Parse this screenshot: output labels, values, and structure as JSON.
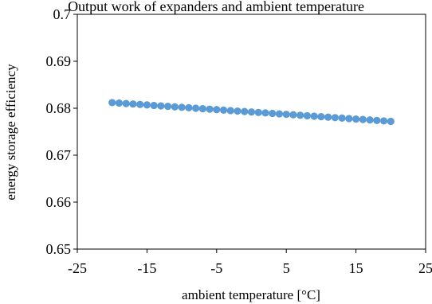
{
  "chart_data": {
    "type": "scatter",
    "title": "Output work of expanders and ambient temperature",
    "xlabel": "ambient temperature [°C]",
    "ylabel": "energy storage efficiency",
    "xlim": [
      -25,
      25
    ],
    "ylim": [
      0.65,
      0.7
    ],
    "xticks": [
      -25,
      -15,
      -5,
      5,
      15,
      25
    ],
    "yticks": [
      0.65,
      0.66,
      0.67,
      0.68,
      0.69,
      0.7
    ],
    "xtick_labels": [
      "-25",
      "-15",
      "-5",
      "5",
      "15",
      "25"
    ],
    "ytick_labels": [
      "0.65",
      "0.66",
      "0.67",
      "0.68",
      "0.69",
      "0.7"
    ],
    "grid": false,
    "legend": "none",
    "marker_color": "#5b9bd5",
    "series": [
      {
        "x": [
          -20,
          -19,
          -18,
          -17,
          -16,
          -15,
          -14,
          -13,
          -12,
          -11,
          -10,
          -9,
          -8,
          -7,
          -6,
          -5,
          -4,
          -3,
          -2,
          -1,
          0,
          1,
          2,
          3,
          4,
          5,
          6,
          7,
          8,
          9,
          10,
          11,
          12,
          13,
          14,
          15,
          16,
          17,
          18,
          19,
          20
        ],
        "y": [
          0.6812,
          0.6811,
          0.681,
          0.6809,
          0.6808,
          0.6807,
          0.6806,
          0.6805,
          0.6804,
          0.6803,
          0.6802,
          0.6801,
          0.68,
          0.6799,
          0.6798,
          0.6797,
          0.6796,
          0.6795,
          0.6794,
          0.6793,
          0.6792,
          0.6791,
          0.679,
          0.6789,
          0.6788,
          0.6787,
          0.6786,
          0.6785,
          0.6784,
          0.6783,
          0.6782,
          0.6781,
          0.678,
          0.6779,
          0.6778,
          0.6777,
          0.6776,
          0.6775,
          0.6774,
          0.6773,
          0.6772
        ]
      }
    ]
  }
}
